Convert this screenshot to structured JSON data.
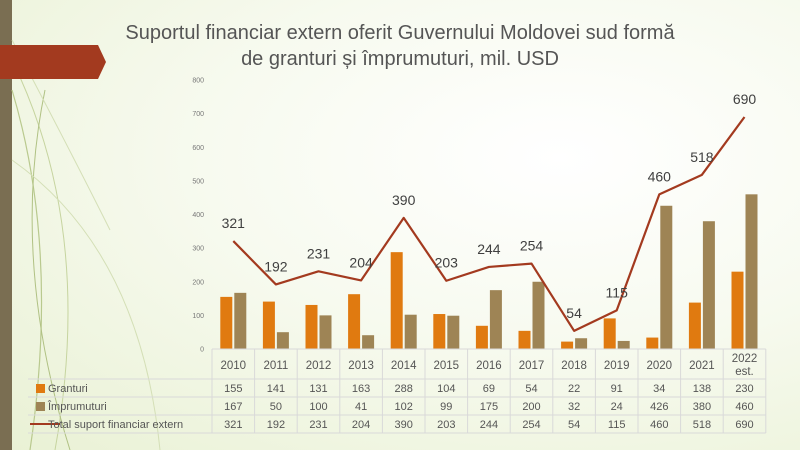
{
  "slide": {
    "title_line1": "Suportul financiar extern oferit Guvernului Moldovei sud formă",
    "title_line2": "de granturi și împrumuturi, mil. USD"
  },
  "colors": {
    "accent_band": "#7a6e52",
    "ribbon": "#a33a1f",
    "grid": "#d9d9d9"
  },
  "chart_data": {
    "type": "bar",
    "categories": [
      "2010",
      "2011",
      "2012",
      "2013",
      "2014",
      "2015",
      "2016",
      "2017",
      "2018",
      "2019",
      "2020",
      "2021",
      "2022 est."
    ],
    "ylim": [
      0,
      800
    ],
    "yticks": [
      "0",
      "100",
      "200",
      "300",
      "400",
      "500",
      "600",
      "700",
      "800"
    ],
    "series": [
      {
        "name": "Granturi",
        "type": "bar",
        "color": "#e07a10",
        "values": [
          155,
          141,
          131,
          163,
          288,
          104,
          69,
          54,
          22,
          91,
          34,
          138,
          230
        ]
      },
      {
        "name": "Împrumuturi",
        "type": "bar",
        "color": "#9e8455",
        "values": [
          167,
          50,
          100,
          41,
          102,
          99,
          175,
          200,
          32,
          24,
          426,
          380,
          460
        ]
      },
      {
        "name": "Total suport financiar extern",
        "type": "line",
        "color": "#a33a1f",
        "values": [
          321,
          192,
          231,
          204,
          390,
          203,
          244,
          254,
          54,
          115,
          460,
          518,
          690
        ]
      }
    ],
    "line_labels": [
      "321",
      "192",
      "231",
      "204",
      "390",
      "203",
      "244",
      "254",
      "54",
      "115",
      "460",
      "518",
      "690"
    ],
    "legend_position": "bottom-table",
    "grid": false
  }
}
